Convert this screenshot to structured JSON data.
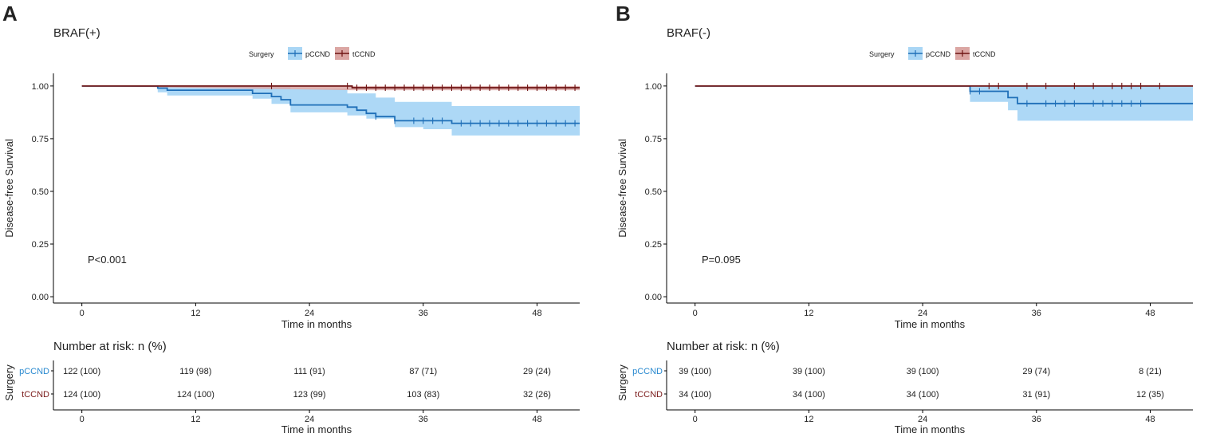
{
  "colors": {
    "pCCND_line": "#1f6fb8",
    "pCCND_band": "#a9d6f5",
    "tCCND_line": "#6e1313",
    "tCCND_band": "#dba6a3",
    "pCCND_label": "#2a8ad0",
    "tCCND_label": "#7a1a1a"
  },
  "chart_data": [
    {
      "type": "line",
      "panel_label": "A",
      "title": "BRAF(+)",
      "legend": {
        "title": "Surgery",
        "entries": [
          "pCCND",
          "tCCND"
        ],
        "placement": "top-center"
      },
      "xlabel": "Time in months",
      "ylabel": "Disease-free Survival",
      "xlim": [
        -3,
        52.5
      ],
      "ylim": [
        -0.03,
        1.06
      ],
      "xticks": [
        "0",
        "12",
        "24",
        "36",
        "48"
      ],
      "yticks": [
        "0.00",
        "0.25",
        "0.50",
        "0.75",
        "1.00"
      ],
      "annotation": "P<0.001",
      "series": [
        {
          "name": "pCCND",
          "steps": [
            [
              0,
              1.0
            ],
            [
              8,
              1.0
            ],
            [
              8,
              0.99
            ],
            [
              9,
              0.99
            ],
            [
              9,
              0.98
            ],
            [
              18,
              0.98
            ],
            [
              18,
              0.965
            ],
            [
              20,
              0.965
            ],
            [
              20,
              0.95
            ],
            [
              21,
              0.95
            ],
            [
              21,
              0.935
            ],
            [
              22,
              0.935
            ],
            [
              22,
              0.91
            ],
            [
              28,
              0.91
            ],
            [
              28,
              0.9
            ],
            [
              29,
              0.9
            ],
            [
              29,
              0.885
            ],
            [
              30,
              0.885
            ],
            [
              30,
              0.87
            ],
            [
              31,
              0.87
            ],
            [
              31,
              0.855
            ],
            [
              33,
              0.855
            ],
            [
              33,
              0.835
            ],
            [
              39,
              0.835
            ],
            [
              39,
              0.823
            ],
            [
              52.5,
              0.823
            ]
          ],
          "ci_upper": [
            [
              8,
              1.0
            ],
            [
              18,
              1.0
            ],
            [
              20,
              0.995
            ],
            [
              22,
              0.985
            ],
            [
              28,
              0.965
            ],
            [
              31,
              0.945
            ],
            [
              33,
              0.925
            ],
            [
              39,
              0.905
            ],
            [
              52.5,
              0.895
            ]
          ],
          "ci_lower": [
            [
              8,
              0.97
            ],
            [
              9,
              0.955
            ],
            [
              18,
              0.94
            ],
            [
              20,
              0.915
            ],
            [
              22,
              0.875
            ],
            [
              28,
              0.86
            ],
            [
              30,
              0.845
            ],
            [
              33,
              0.805
            ],
            [
              36,
              0.795
            ],
            [
              39,
              0.765
            ],
            [
              52.5,
              0.76
            ]
          ],
          "censor_times": [
            31,
            33,
            35,
            36,
            37,
            38,
            40,
            41,
            42,
            43,
            44,
            45,
            46,
            47,
            48,
            49,
            50,
            51,
            52
          ]
        },
        {
          "name": "tCCND",
          "steps": [
            [
              0,
              1.0
            ],
            [
              28.5,
              1.0
            ],
            [
              28.5,
              0.992
            ],
            [
              52.5,
              0.992
            ]
          ],
          "ci_upper": [
            [
              0,
              1.0
            ],
            [
              52.5,
              1.0
            ]
          ],
          "ci_lower": [
            [
              28.5,
              0.98
            ],
            [
              52.5,
              0.98
            ]
          ],
          "censor_times": [
            20,
            28,
            29,
            30,
            31,
            32,
            33,
            34,
            35,
            36,
            37,
            38,
            39,
            40,
            41,
            42,
            43,
            44,
            45,
            46,
            47,
            48,
            49,
            50,
            51,
            52
          ]
        }
      ],
      "risk_table": {
        "title": "Number at risk: n (%)",
        "ylabel": "Surgery",
        "xlabel": "Time in months",
        "times": [
          0,
          12,
          24,
          36,
          48
        ],
        "rows": [
          {
            "name": "pCCND",
            "values": [
              "122 (100)",
              "119 (98)",
              "111 (91)",
              "87 (71)",
              "29 (24)"
            ]
          },
          {
            "name": "tCCND",
            "values": [
              "124 (100)",
              "124 (100)",
              "123 (99)",
              "103 (83)",
              "32 (26)"
            ]
          }
        ]
      }
    },
    {
      "type": "line",
      "panel_label": "B",
      "title": "BRAF(-)",
      "legend": {
        "title": "Surgery",
        "entries": [
          "pCCND",
          "tCCND"
        ],
        "placement": "top-center"
      },
      "xlabel": "Time in months",
      "ylabel": "Disease-free Survival",
      "xlim": [
        -3,
        52.5
      ],
      "ylim": [
        -0.03,
        1.06
      ],
      "xticks": [
        "0",
        "12",
        "24",
        "36",
        "48"
      ],
      "yticks": [
        "0.00",
        "0.25",
        "0.50",
        "0.75",
        "1.00"
      ],
      "annotation": "P=0.095",
      "series": [
        {
          "name": "pCCND",
          "steps": [
            [
              0,
              1.0
            ],
            [
              29,
              1.0
            ],
            [
              29,
              0.975
            ],
            [
              33,
              0.975
            ],
            [
              33,
              0.945
            ],
            [
              34,
              0.945
            ],
            [
              34,
              0.917
            ],
            [
              52.5,
              0.917
            ]
          ],
          "ci_upper": [
            [
              29,
              1.0
            ],
            [
              52.5,
              1.0
            ]
          ],
          "ci_lower": [
            [
              29,
              0.925
            ],
            [
              33,
              0.885
            ],
            [
              34,
              0.835
            ],
            [
              52.5,
              0.835
            ]
          ],
          "censor_times": [
            29,
            30,
            35,
            37,
            38,
            39,
            40,
            42,
            43,
            44,
            45,
            46,
            47
          ]
        },
        {
          "name": "tCCND",
          "steps": [
            [
              0,
              1.0
            ],
            [
              52.5,
              1.0
            ]
          ],
          "ci_upper": [
            [
              0,
              1.0
            ],
            [
              52.5,
              1.0
            ]
          ],
          "ci_lower": [
            [
              0,
              1.0
            ],
            [
              52.5,
              1.0
            ]
          ],
          "censor_times": [
            31,
            32,
            35,
            37,
            40,
            42,
            44,
            45,
            46,
            47,
            49
          ]
        }
      ],
      "risk_table": {
        "title": "Number at risk: n (%)",
        "ylabel": "Surgery",
        "xlabel": "Time in months",
        "times": [
          0,
          12,
          24,
          36,
          48
        ],
        "rows": [
          {
            "name": "pCCND",
            "values": [
              "39 (100)",
              "39 (100)",
              "39 (100)",
              "29 (74)",
              "8 (21)"
            ]
          },
          {
            "name": "tCCND",
            "values": [
              "34 (100)",
              "34 (100)",
              "34 (100)",
              "31 (91)",
              "12 (35)"
            ]
          }
        ]
      }
    }
  ]
}
